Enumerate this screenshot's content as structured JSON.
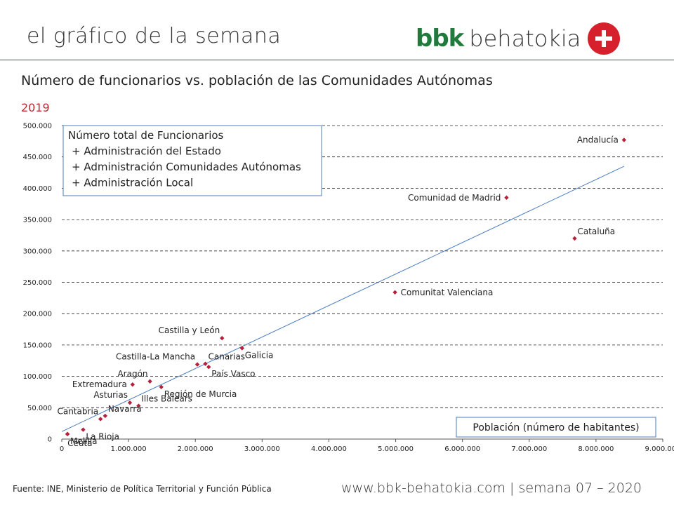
{
  "header": {
    "title": "el gráfico de la semana",
    "logo_bbk": "bbk",
    "logo_name": "behatokia",
    "accent_color": "#c0272d",
    "brand_green": "#1f7a3c"
  },
  "chart_data": {
    "type": "scatter",
    "title": "Número de funcionarios vs. población de las Comunidades Autónomas",
    "subtitle": "2019",
    "xlabel": "Población (número de habitantes)",
    "ylabel": "",
    "xlim": [
      0,
      9000000
    ],
    "ylim": [
      0,
      500000
    ],
    "x_ticks": [
      {
        "value": 0,
        "label": "0"
      },
      {
        "value": 1000000,
        "label": "1.000.000"
      },
      {
        "value": 2000000,
        "label": "2.000.000"
      },
      {
        "value": 3000000,
        "label": "3.000.000"
      },
      {
        "value": 4000000,
        "label": "4.000.000"
      },
      {
        "value": 5000000,
        "label": "5.000.000"
      },
      {
        "value": 6000000,
        "label": "6.000.000"
      },
      {
        "value": 7000000,
        "label": "7.000.000"
      },
      {
        "value": 8000000,
        "label": "8.000.000"
      },
      {
        "value": 9000000,
        "label": "9.000.000"
      }
    ],
    "y_ticks": [
      {
        "value": 0,
        "label": "0"
      },
      {
        "value": 50000,
        "label": "50.000"
      },
      {
        "value": 100000,
        "label": "100.000"
      },
      {
        "value": 150000,
        "label": "150.000"
      },
      {
        "value": 200000,
        "label": "200.000"
      },
      {
        "value": 250000,
        "label": "250.000"
      },
      {
        "value": 300000,
        "label": "300.000"
      },
      {
        "value": 350000,
        "label": "350.000"
      },
      {
        "value": 400000,
        "label": "400.000"
      },
      {
        "value": 450000,
        "label": "450.000"
      },
      {
        "value": 500000,
        "label": "500.000"
      }
    ],
    "grid": "horizontal-dashed",
    "marker_color": "#b5203a",
    "trend_color": "#4a7cc0",
    "points": [
      {
        "name": "Andalucía",
        "x": 8420000,
        "y": 477000,
        "label_pos": "left"
      },
      {
        "name": "Comunidad de Madrid",
        "x": 6660000,
        "y": 385000,
        "label_pos": "left"
      },
      {
        "name": "Cataluña",
        "x": 7680000,
        "y": 320000,
        "label_pos": "right-up"
      },
      {
        "name": "Comunitat Valenciana",
        "x": 4990000,
        "y": 234000,
        "label_pos": "right"
      },
      {
        "name": "Castilla y León",
        "x": 2400000,
        "y": 161000,
        "label_pos": "left-up"
      },
      {
        "name": "Galicia",
        "x": 2700000,
        "y": 145000,
        "label_pos": "right-down"
      },
      {
        "name": "Castilla-La Mancha",
        "x": 2030000,
        "y": 119000,
        "label_pos": "left-up"
      },
      {
        "name": "Canarias",
        "x": 2150000,
        "y": 120000,
        "label_pos": "right-up"
      },
      {
        "name": "País Vasco",
        "x": 2200000,
        "y": 115000,
        "label_pos": "right-down"
      },
      {
        "name": "Aragón",
        "x": 1320000,
        "y": 92000,
        "label_pos": "left-up"
      },
      {
        "name": "Extremadura",
        "x": 1060000,
        "y": 87000,
        "label_pos": "left"
      },
      {
        "name": "Región de Murcia",
        "x": 1490000,
        "y": 83000,
        "label_pos": "right-down"
      },
      {
        "name": "Asturias",
        "x": 1020000,
        "y": 58000,
        "label_pos": "left-up"
      },
      {
        "name": "Illes Balears",
        "x": 1150000,
        "y": 53000,
        "label_pos": "right-up"
      },
      {
        "name": "Navarra",
        "x": 650000,
        "y": 37000,
        "label_pos": "right-up"
      },
      {
        "name": "Cantabria",
        "x": 580000,
        "y": 32000,
        "label_pos": "left-up"
      },
      {
        "name": "La Rioja",
        "x": 320000,
        "y": 15000,
        "label_pos": "right-down"
      },
      {
        "name": "Melilla",
        "x": 85000,
        "y": 8000,
        "label_pos": "right-down"
      },
      {
        "name": "Ceuta",
        "x": 85000,
        "y": 8000,
        "label_pos": "below"
      }
    ],
    "trendline": {
      "x_start": 0,
      "y_start": 12000,
      "x_end": 8420000,
      "y_end": 435000
    },
    "annotation_box": {
      "lines": [
        "Número total de Funcionarios",
        "+ Administración del Estado",
        "+ Administración Comunidades Autónomas",
        "+ Administración Local"
      ],
      "placement": "top-left"
    },
    "xlabel_box_placement": "bottom-right"
  },
  "footer": {
    "source": "Fuente:  INE, Ministerio de Política Territorial y Función Pública",
    "site": "www.bbk-behatokia.com | semana 07 – 2020"
  }
}
